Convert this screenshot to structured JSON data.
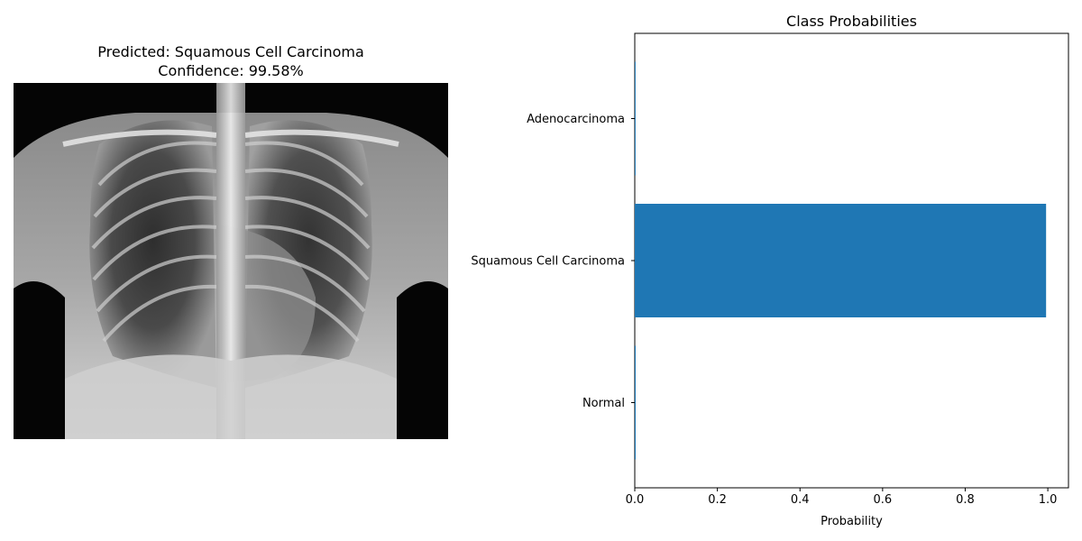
{
  "left_panel": {
    "title_line1": "Predicted: Squamous Cell Carcinoma",
    "title_line2": "Confidence: 99.58%",
    "image_alt": "chest-xray"
  },
  "chart_data": {
    "type": "bar",
    "orientation": "horizontal",
    "title": "Class Probabilities",
    "xlabel": "Probability",
    "ylabel": "",
    "categories": [
      "Adenocarcinoma",
      "Squamous Cell Carcinoma",
      "Normal"
    ],
    "values": [
      0.002,
      0.9958,
      0.0022
    ],
    "xlim": [
      0,
      1.05
    ],
    "xticks": [
      "0.0",
      "0.2",
      "0.4",
      "0.6",
      "0.8",
      "1.0"
    ],
    "bar_color": "#1f77b4",
    "grid": false
  }
}
